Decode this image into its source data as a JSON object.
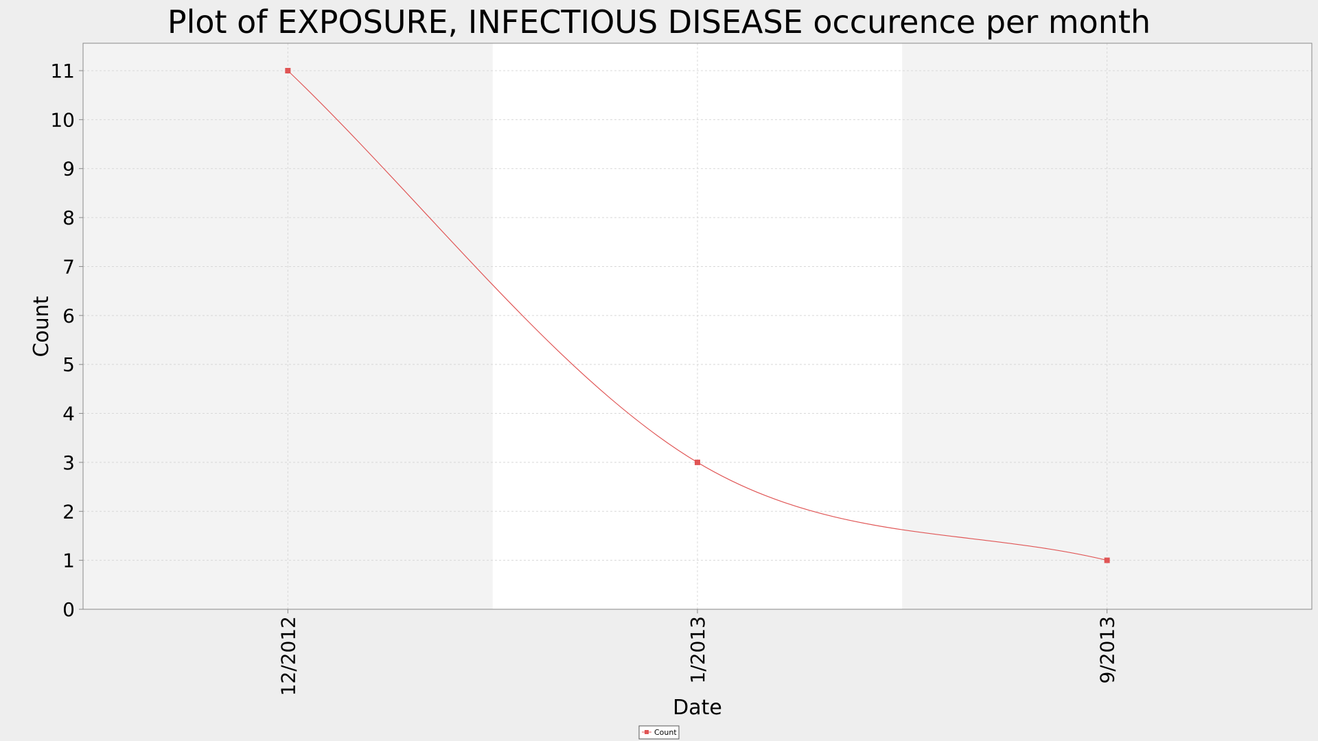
{
  "chart_data": {
    "type": "line",
    "title": "Plot of EXPOSURE, INFECTIOUS DISEASE occurence per month",
    "xlabel": "Date",
    "ylabel": "Count",
    "categories": [
      "12/2012",
      "1/2013",
      "9/2013"
    ],
    "series": [
      {
        "name": "Count",
        "values": [
          11,
          3,
          1
        ],
        "color": "#e05555"
      }
    ],
    "ylim": [
      0,
      11
    ],
    "yticks": [
      0,
      1,
      2,
      3,
      4,
      5,
      6,
      7,
      8,
      9,
      10,
      11
    ],
    "grid": true,
    "smooth": true,
    "legend_position": "bottom-center",
    "colors": {
      "page_background": "#eeeeee",
      "band_shaded": "#f3f3f3",
      "band_plain": "#ffffff",
      "gridline": "#d8d8d8",
      "axis": "#888888"
    }
  }
}
